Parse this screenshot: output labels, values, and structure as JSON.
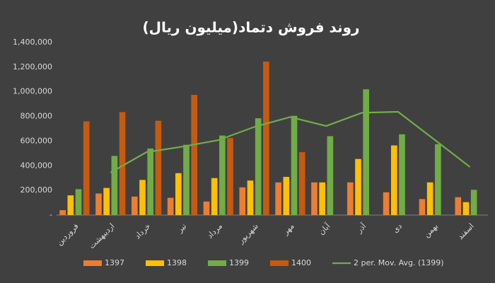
{
  "chart_data": {
    "type": "bar",
    "title": "روند فروش دتماد(میلیون ریال)",
    "categories": [
      "فروردین",
      "اردیبهشت",
      "خرداد",
      "تیر",
      "مرداد",
      "شهریور",
      "مهر",
      "آبان",
      "آذر",
      "دی",
      "بهمن",
      "اسفند"
    ],
    "series": [
      {
        "name": "1397",
        "color": "#ed7d31",
        "values": [
          40000,
          175000,
          150000,
          140000,
          110000,
          225000,
          265000,
          265000,
          265000,
          185000,
          130000,
          145000
        ]
      },
      {
        "name": "1398",
        "color": "#ffc000",
        "values": [
          160000,
          220000,
          285000,
          340000,
          300000,
          280000,
          310000,
          265000,
          455000,
          565000,
          265000,
          105000
        ]
      },
      {
        "name": "1399",
        "color": "#70ad47",
        "values": [
          210000,
          480000,
          540000,
          570000,
          645000,
          785000,
          805000,
          640000,
          1020000,
          655000,
          575000,
          205000
        ]
      },
      {
        "name": "1400",
        "color": "#c55a11",
        "values": [
          760000,
          835000,
          765000,
          975000,
          625000,
          1245000,
          510000,
          null,
          null,
          null,
          null,
          null
        ]
      }
    ],
    "trendline": {
      "name": "2 per. Mov. Avg. (1399)",
      "color": "#70ad47",
      "values": [
        null,
        345000,
        510000,
        555000,
        607500,
        715000,
        795000,
        722500,
        830000,
        837500,
        615000,
        390000
      ]
    },
    "ylim": [
      0,
      1400000
    ],
    "yticks": [
      {
        "value": 0,
        "label": "-"
      },
      {
        "value": 200000,
        "label": "200,000"
      },
      {
        "value": 400000,
        "label": "400,000"
      },
      {
        "value": 600000,
        "label": "600,000"
      },
      {
        "value": 800000,
        "label": "800,000"
      },
      {
        "value": 1000000,
        "label": "1,000,000"
      },
      {
        "value": 1200000,
        "label": "1,200,000"
      },
      {
        "value": 1400000,
        "label": "1,400,000"
      }
    ],
    "grid": false
  }
}
